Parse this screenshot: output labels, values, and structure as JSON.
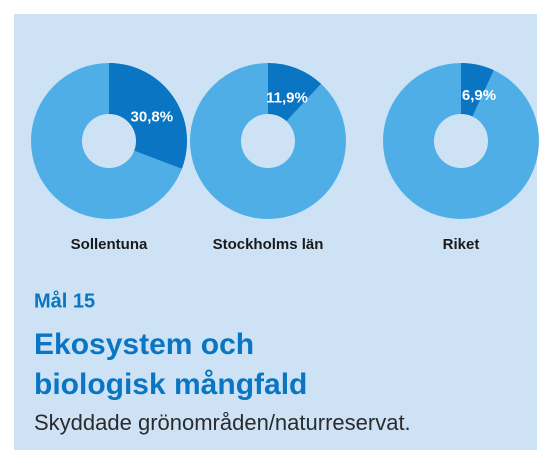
{
  "chart_data": [
    {
      "type": "pie",
      "title": "Sollentuna",
      "values": [
        30.8
      ],
      "value_labels": [
        "30,8%"
      ],
      "color": "#0a75c2",
      "rest_color": "#4faee6"
    },
    {
      "type": "pie",
      "title": "Stockholms län",
      "values": [
        11.9
      ],
      "value_labels": [
        "11,9%"
      ],
      "color": "#0a75c2",
      "rest_color": "#4faee6"
    },
    {
      "type": "pie",
      "title": "Riket",
      "values": [
        6.9
      ],
      "value_labels": [
        "6,9%"
      ],
      "color": "#0a75c2",
      "rest_color": "#4faee6"
    }
  ],
  "header": {
    "goal": "Mål 15",
    "title_lines": [
      "Ekosystem och",
      "biologisk mångfald"
    ],
    "subtitle": "Skyddade grönområden/naturreservat."
  }
}
